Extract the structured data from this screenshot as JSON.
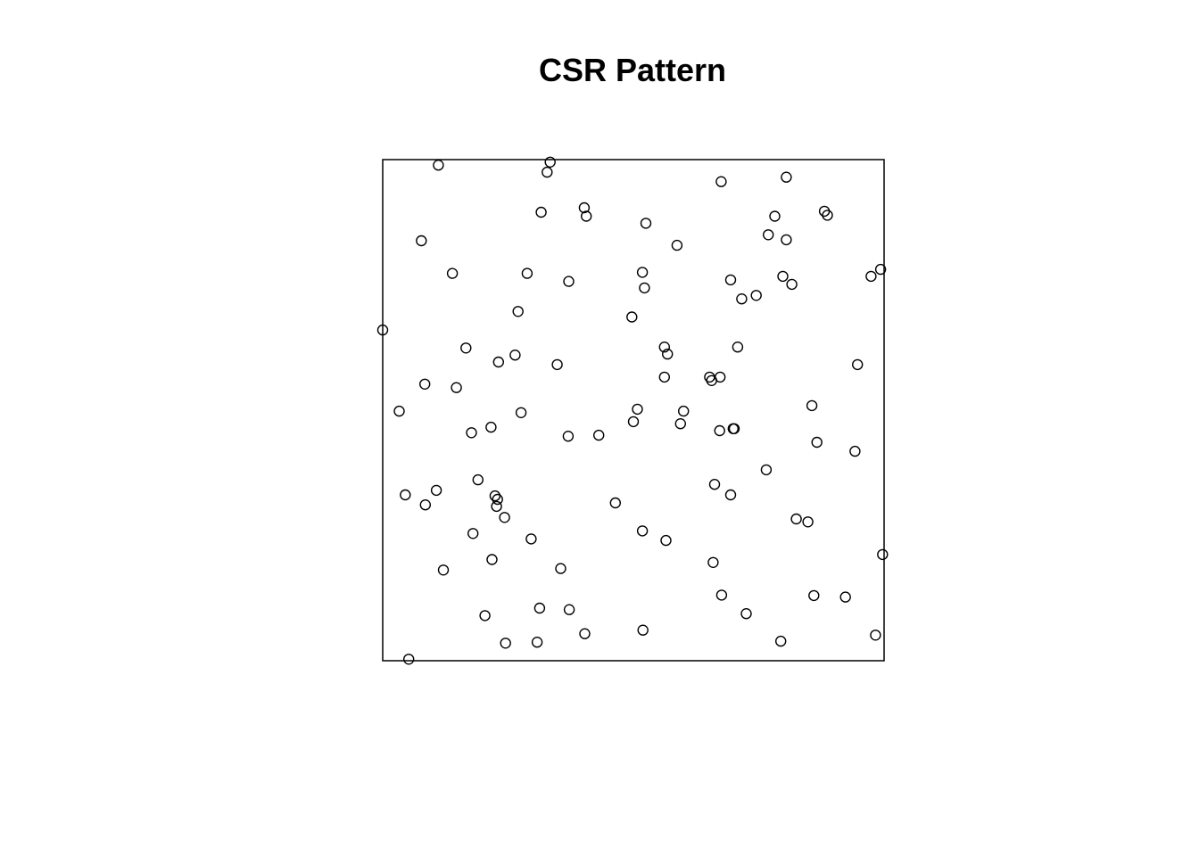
{
  "chart_data": {
    "type": "scatter",
    "title": "CSR Pattern",
    "xlabel": "",
    "ylabel": "",
    "xlim": [
      0,
      1
    ],
    "ylim": [
      0,
      1
    ],
    "grid": false,
    "marker": "open-circle",
    "colors": {
      "stroke": "#000000",
      "background": "#ffffff"
    },
    "points": [
      [
        0.111,
        0.989
      ],
      [
        0.334,
        0.995
      ],
      [
        0.328,
        0.975
      ],
      [
        0.675,
        0.956
      ],
      [
        0.805,
        0.965
      ],
      [
        0.316,
        0.895
      ],
      [
        0.402,
        0.904
      ],
      [
        0.406,
        0.887
      ],
      [
        0.525,
        0.873
      ],
      [
        0.782,
        0.887
      ],
      [
        0.881,
        0.897
      ],
      [
        0.887,
        0.889
      ],
      [
        0.077,
        0.838
      ],
      [
        0.769,
        0.85
      ],
      [
        0.805,
        0.84
      ],
      [
        0.587,
        0.829
      ],
      [
        0.139,
        0.773
      ],
      [
        0.288,
        0.773
      ],
      [
        0.371,
        0.757
      ],
      [
        0.518,
        0.775
      ],
      [
        0.694,
        0.76
      ],
      [
        0.798,
        0.767
      ],
      [
        0.816,
        0.751
      ],
      [
        0.974,
        0.767
      ],
      [
        0.993,
        0.781
      ],
      [
        0.522,
        0.744
      ],
      [
        0.716,
        0.722
      ],
      [
        0.745,
        0.729
      ],
      [
        0.27,
        0.697
      ],
      [
        0.497,
        0.686
      ],
      [
        0.0,
        0.66
      ],
      [
        0.166,
        0.624
      ],
      [
        0.264,
        0.61
      ],
      [
        0.231,
        0.596
      ],
      [
        0.348,
        0.591
      ],
      [
        0.562,
        0.626
      ],
      [
        0.568,
        0.612
      ],
      [
        0.708,
        0.626
      ],
      [
        0.947,
        0.591
      ],
      [
        0.084,
        0.552
      ],
      [
        0.147,
        0.545
      ],
      [
        0.562,
        0.566
      ],
      [
        0.652,
        0.566
      ],
      [
        0.673,
        0.566
      ],
      [
        0.656,
        0.559
      ],
      [
        0.033,
        0.498
      ],
      [
        0.276,
        0.495
      ],
      [
        0.508,
        0.502
      ],
      [
        0.6,
        0.498
      ],
      [
        0.856,
        0.509
      ],
      [
        0.5,
        0.477
      ],
      [
        0.594,
        0.473
      ],
      [
        0.216,
        0.466
      ],
      [
        0.177,
        0.455
      ],
      [
        0.37,
        0.448
      ],
      [
        0.431,
        0.45
      ],
      [
        0.672,
        0.459
      ],
      [
        0.699,
        0.463
      ],
      [
        0.701,
        0.463
      ],
      [
        0.866,
        0.436
      ],
      [
        0.942,
        0.418
      ],
      [
        0.765,
        0.381
      ],
      [
        0.19,
        0.361
      ],
      [
        0.662,
        0.352
      ],
      [
        0.694,
        0.331
      ],
      [
        0.045,
        0.331
      ],
      [
        0.107,
        0.34
      ],
      [
        0.085,
        0.311
      ],
      [
        0.224,
        0.329
      ],
      [
        0.229,
        0.322
      ],
      [
        0.227,
        0.308
      ],
      [
        0.243,
        0.286
      ],
      [
        0.464,
        0.315
      ],
      [
        0.825,
        0.283
      ],
      [
        0.848,
        0.277
      ],
      [
        0.18,
        0.254
      ],
      [
        0.296,
        0.243
      ],
      [
        0.518,
        0.259
      ],
      [
        0.565,
        0.24
      ],
      [
        0.997,
        0.212
      ],
      [
        0.121,
        0.181
      ],
      [
        0.218,
        0.202
      ],
      [
        0.355,
        0.184
      ],
      [
        0.659,
        0.196
      ],
      [
        0.676,
        0.131
      ],
      [
        0.86,
        0.13
      ],
      [
        0.923,
        0.127
      ],
      [
        0.204,
        0.09
      ],
      [
        0.313,
        0.105
      ],
      [
        0.372,
        0.102
      ],
      [
        0.725,
        0.094
      ],
      [
        0.403,
        0.054
      ],
      [
        0.519,
        0.061
      ],
      [
        0.245,
        0.035
      ],
      [
        0.308,
        0.037
      ],
      [
        0.794,
        0.039
      ],
      [
        0.983,
        0.051
      ],
      [
        0.052,
        0.003
      ]
    ]
  }
}
